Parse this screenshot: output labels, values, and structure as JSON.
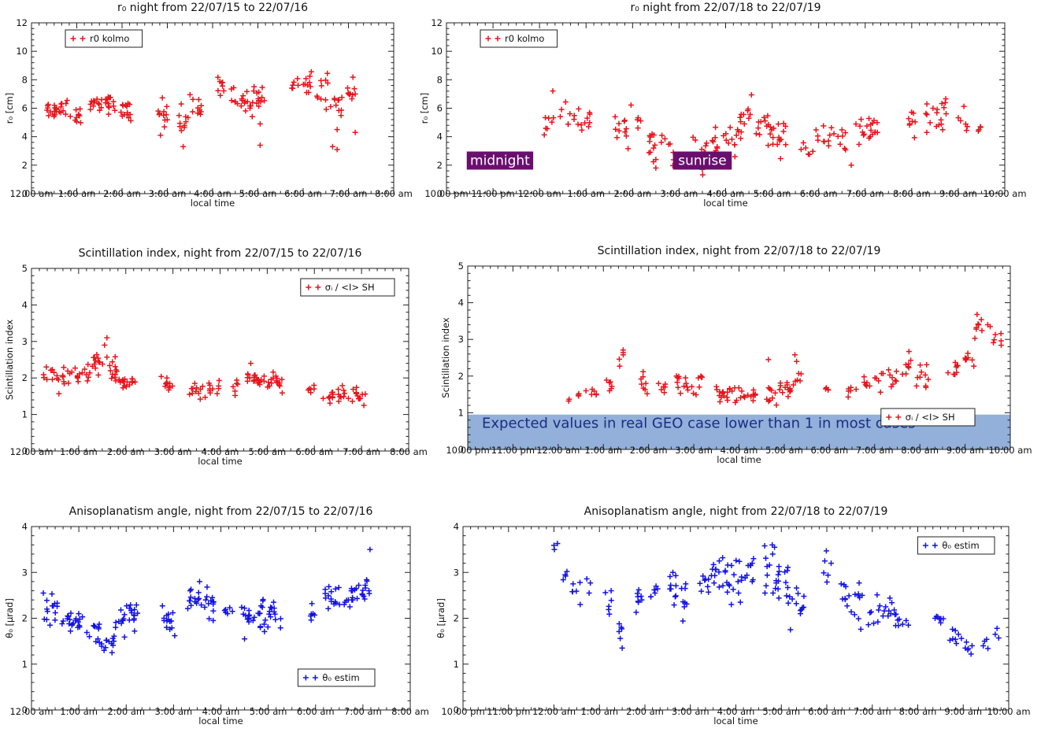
{
  "colors": {
    "red": "#e8141b",
    "blue": "#1212e6",
    "annot_bg": "#6a0f6e",
    "band": "#7fa2d2"
  },
  "chart_data": [
    {
      "type": "scatter",
      "title": "r₀ night from 22/07/15 to 22/07/16",
      "xlabel": "local time",
      "ylabel": "r₀ [cm]",
      "x_unit": "hours since 12:00 am",
      "xlim": [
        0,
        8
      ],
      "ylim": [
        0,
        12
      ],
      "xticks": [
        0,
        1,
        2,
        3,
        4,
        5,
        6,
        7,
        8
      ],
      "xtick_labels": [
        "12:00 am",
        "1:00 am",
        "2:00 am",
        "3:00 am",
        "4:00 am",
        "5:00 am",
        "6:00 am",
        "7:00 am",
        "8:00 am"
      ],
      "yticks": [
        0,
        2,
        4,
        6,
        8,
        10,
        12
      ],
      "ytick_labels": [
        "0",
        "2",
        "4",
        "6",
        "8",
        "10",
        "12"
      ],
      "legend": {
        "label": "r0 kolmo",
        "position": "top-left"
      },
      "series": [
        {
          "name": "r0 kolmo",
          "color": "#e8141b",
          "values": []
        }
      ],
      "annotations": []
    }
  ]
}
